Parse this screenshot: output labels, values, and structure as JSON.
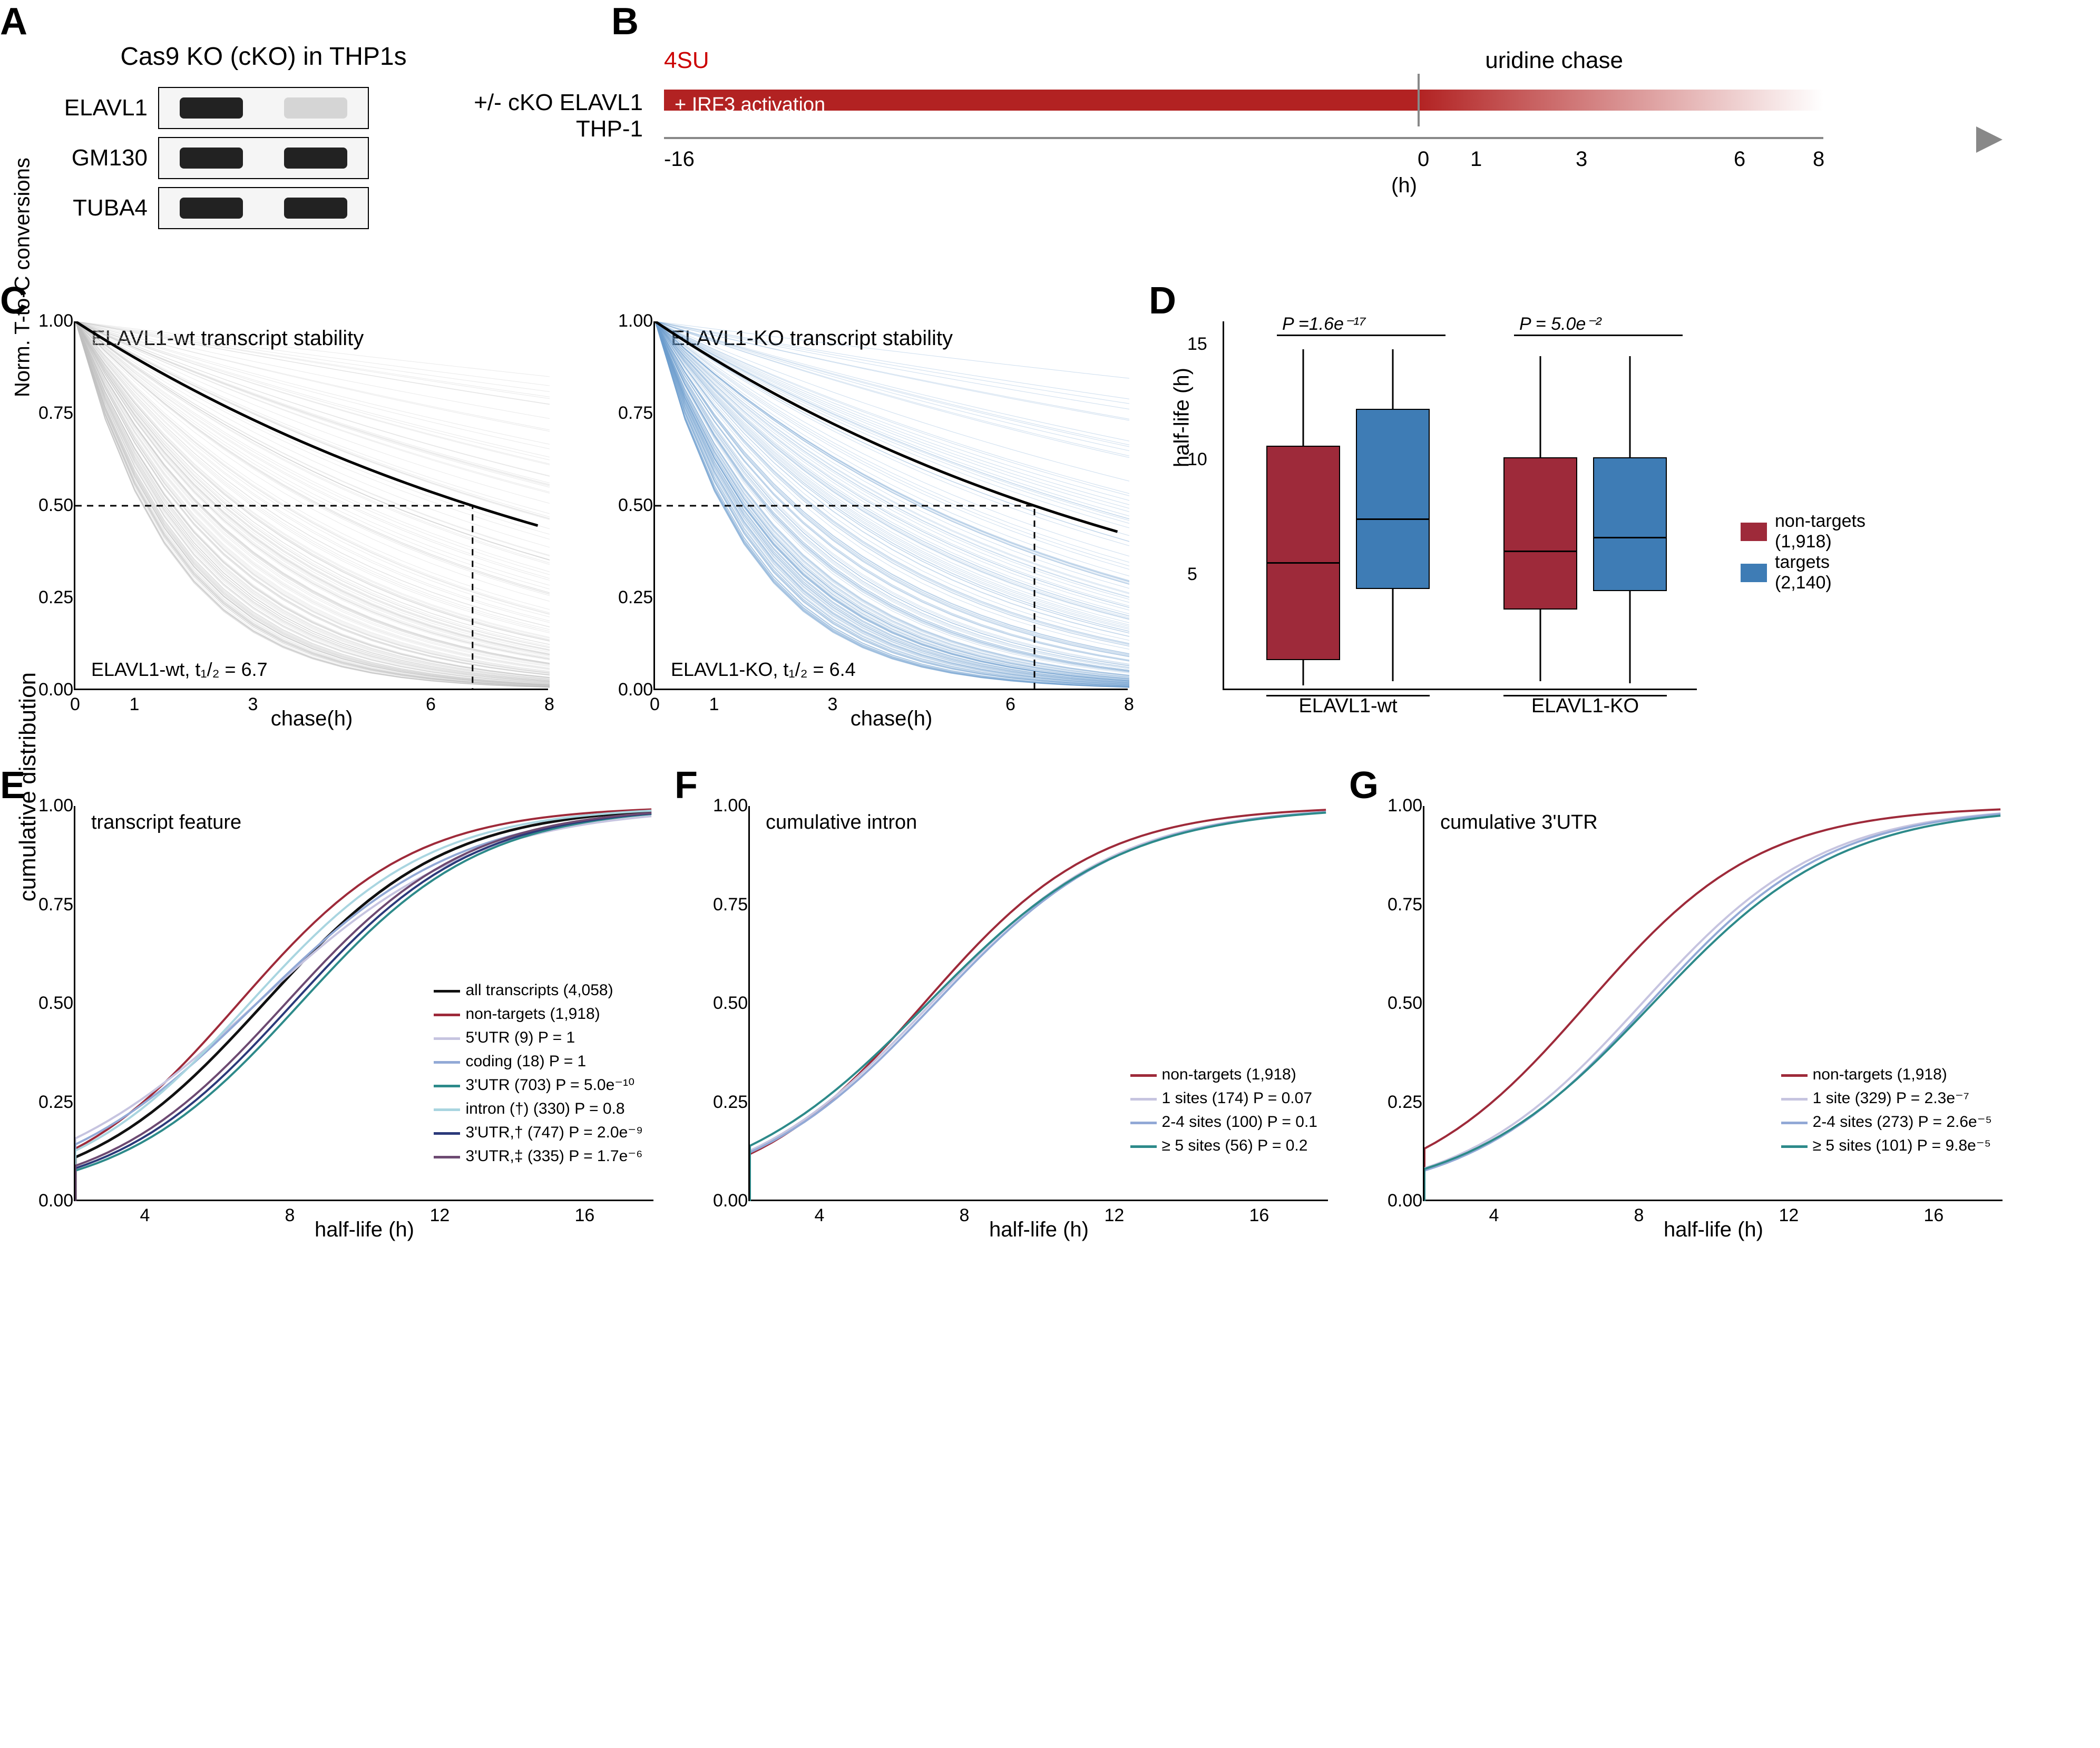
{
  "colors": {
    "grey_line": "#bfbfbf",
    "blue_line": "#6d9dcd",
    "nontarget": "#9e2a3a",
    "target": "#3e7cb5",
    "black": "#000000",
    "all_transcripts": "#111111",
    "utr5": "#c6c4e0",
    "coding": "#92a9d6",
    "utr3": "#2d8a8a",
    "intron": "#a9d5e0",
    "utr3_dag": "#2b3a7a",
    "utr3_ddag": "#6d4a72",
    "red4su": "#c00000",
    "sites1": "#c6c4e0",
    "sites24": "#92a9d6",
    "sites5": "#2d8a8a"
  },
  "panelA": {
    "title": "Cas9 KO (cKO) in THP1s",
    "rows": [
      "ELAVL1",
      "GM130",
      "TUBA4"
    ]
  },
  "panelB": {
    "label_left_1": "+/- cKO ELAVL1",
    "label_left_2": "THP-1",
    "label_4su": "4SU",
    "chase_label": "uridine chase",
    "irf3": "+ IRF3 activation",
    "ticks": [
      {
        "x": 20,
        "label": "-16"
      },
      {
        "x": 1450,
        "label": "0"
      },
      {
        "x": 1550,
        "label": "1"
      },
      {
        "x": 1750,
        "label": "3"
      },
      {
        "x": 2050,
        "label": "6"
      },
      {
        "x": 2200,
        "label": "8"
      }
    ],
    "h_label": "(h)"
  },
  "panelC": {
    "wt": {
      "title": "ELAVL1-wt transcript stability",
      "footer": "ELAVL1-wt, t₁/₂ = 6.7",
      "median_halflife": 6.7,
      "line_color": "#bfbfbf"
    },
    "ko": {
      "title": "ELAVL1-KO transcript stability",
      "footer": "ELAVL1-KO, t₁/₂ = 6.4",
      "median_halflife": 6.4,
      "line_color": "#6d9dcd"
    },
    "y_label": "Norm. T-to-C conversions",
    "x_label": "chase(h)",
    "x_ticks": [
      0,
      1,
      3,
      6,
      8
    ],
    "y_ticks": [
      0.0,
      0.25,
      0.5,
      0.75,
      1.0
    ],
    "xlim": [
      0,
      8
    ],
    "ylim": [
      0,
      1
    ]
  },
  "panelD": {
    "y_label": "half-life (h)",
    "y_ticks": [
      5,
      10,
      15
    ],
    "ylim": [
      0,
      16
    ],
    "groups": [
      {
        "label": "ELAVL1-wt",
        "pval": "P =1.6e⁻¹⁷",
        "boxes": [
          {
            "color": "#9e2a3a",
            "q1": 1.3,
            "median": 5.6,
            "q3": 10.6,
            "lo": 0.2,
            "hi": 14.8
          },
          {
            "color": "#3e7cb5",
            "q1": 4.4,
            "median": 7.5,
            "q3": 12.2,
            "lo": 0.4,
            "hi": 14.8
          }
        ]
      },
      {
        "label": "ELAVL1-KO",
        "pval": "P = 5.0e⁻²",
        "boxes": [
          {
            "color": "#9e2a3a",
            "q1": 3.5,
            "median": 6.1,
            "q3": 10.1,
            "lo": 0.4,
            "hi": 14.5
          },
          {
            "color": "#3e7cb5",
            "q1": 4.3,
            "median": 6.7,
            "q3": 10.1,
            "lo": 0.3,
            "hi": 14.5
          }
        ]
      }
    ],
    "legend": [
      {
        "color": "#9e2a3a",
        "label": "non-targets",
        "count": "(1,918)"
      },
      {
        "color": "#3e7cb5",
        "label": "targets",
        "count": "(2,140)"
      }
    ]
  },
  "panelE": {
    "title": "transcript feature",
    "y_label": "cumulative distribution",
    "x_label": "half-life (h)",
    "x_ticks": [
      4,
      8,
      12,
      16
    ],
    "y_ticks": [
      0.0,
      0.25,
      0.5,
      0.75,
      1.0
    ],
    "xlim": [
      2,
      18
    ],
    "legend": [
      {
        "color": "#111111",
        "text": "all transcripts (4,058)"
      },
      {
        "color": "#9e2a3a",
        "text": "non-targets (1,918)"
      },
      {
        "color": "#c6c4e0",
        "text": "5'UTR (9) P = 1"
      },
      {
        "color": "#92a9d6",
        "text": "coding (18) P = 1"
      },
      {
        "color": "#2d8a8a",
        "text": "3'UTR (703) P = 5.0e⁻¹⁰"
      },
      {
        "color": "#a9d5e0",
        "text": "intron (†) (330) P = 0.8"
      },
      {
        "color": "#2b3a7a",
        "text": "3'UTR,† (747) P = 2.0e⁻⁹"
      },
      {
        "color": "#6d4a72",
        "text": "3'UTR,‡ (335) P = 1.7e⁻⁶"
      }
    ]
  },
  "panelF": {
    "title": "cumulative intron",
    "x_label": "half-life (h)",
    "legend": [
      {
        "color": "#9e2a3a",
        "text": "non-targets (1,918)"
      },
      {
        "color": "#c6c4e0",
        "text": "1 sites (174) P = 0.07"
      },
      {
        "color": "#92a9d6",
        "text": "2-4 sites (100) P = 0.1"
      },
      {
        "color": "#2d8a8a",
        "text": "≥ 5 sites (56) P = 0.2"
      }
    ]
  },
  "panelG": {
    "title": "cumulative 3'UTR",
    "x_label": "half-life (h)",
    "legend": [
      {
        "color": "#9e2a3a",
        "text": "non-targets (1,918)"
      },
      {
        "color": "#c6c4e0",
        "text": "1 site (329) P = 2.3e⁻⁷"
      },
      {
        "color": "#92a9d6",
        "text": "2-4 sites (273) P = 2.6e⁻⁵"
      },
      {
        "color": "#2d8a8a",
        "text": "≥ 5 sites (101) P = 9.8e⁻⁵"
      }
    ]
  }
}
